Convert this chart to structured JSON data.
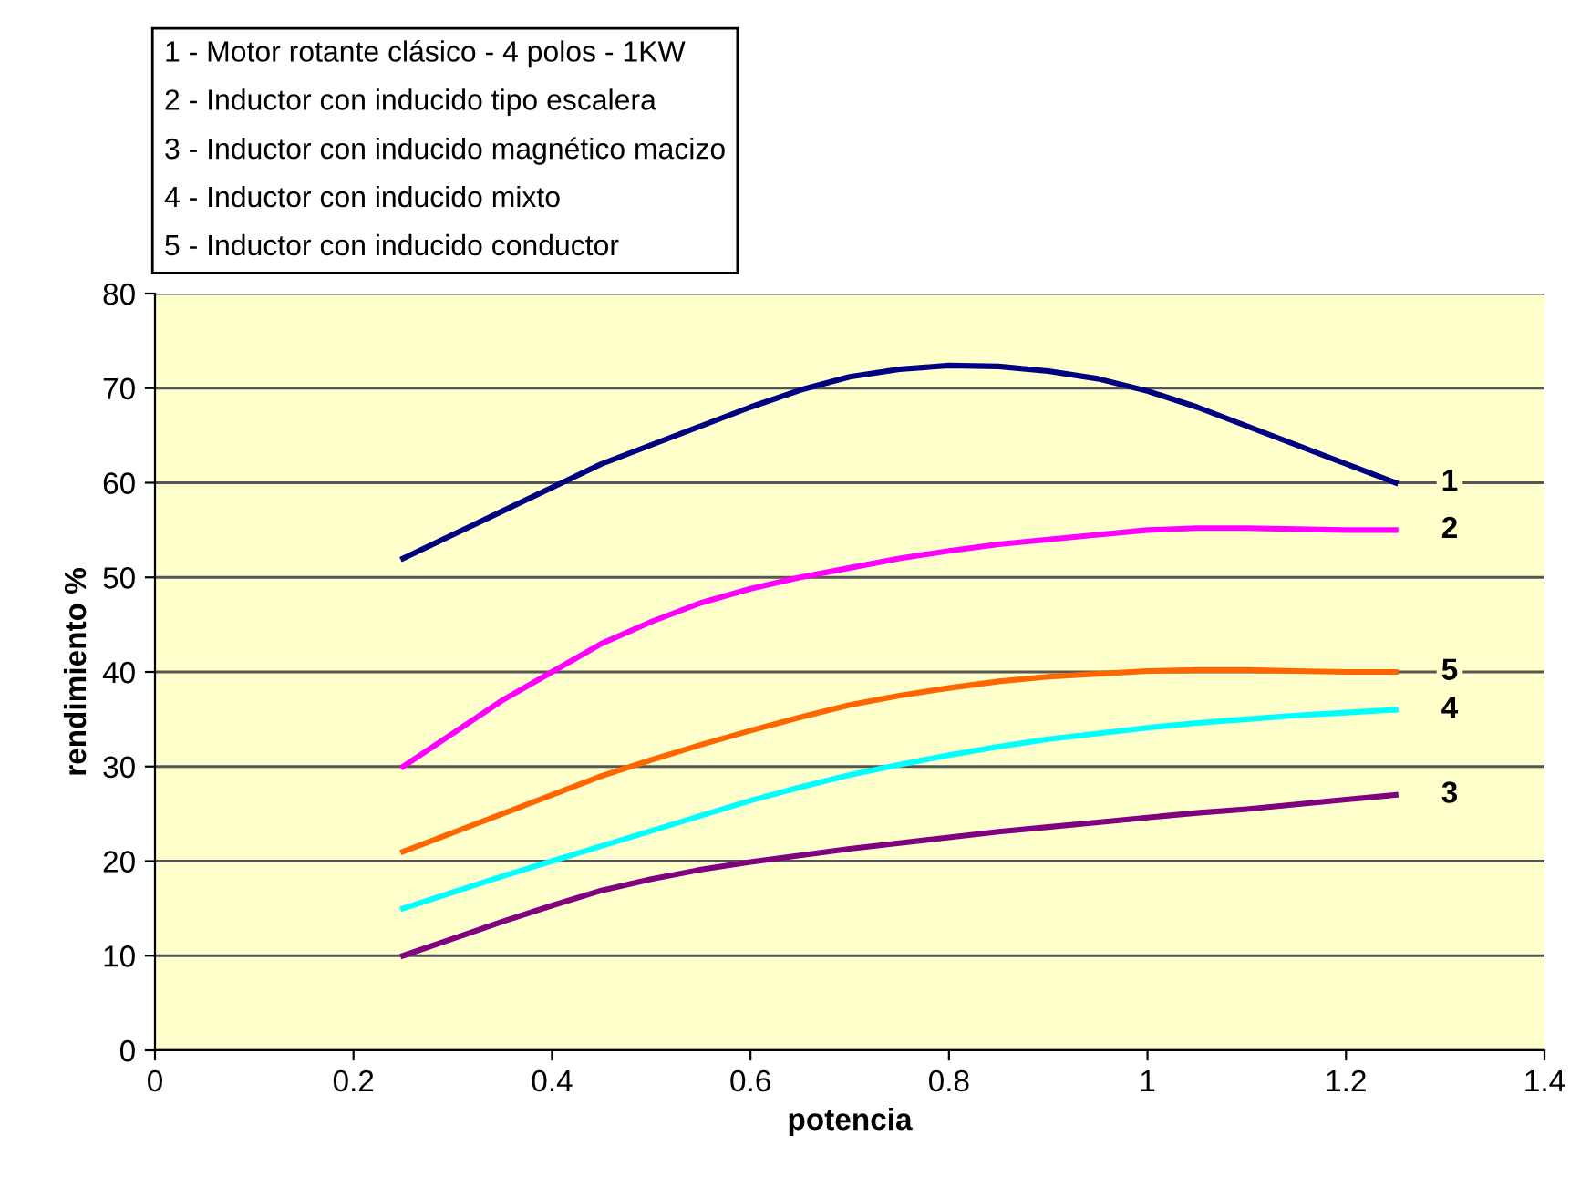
{
  "chart_data": {
    "type": "line",
    "xlabel": "potencia",
    "ylabel": "rendimiento %",
    "x": [
      0.25,
      0.3,
      0.35,
      0.4,
      0.45,
      0.5,
      0.55,
      0.6,
      0.65,
      0.7,
      0.75,
      0.8,
      0.85,
      0.9,
      0.95,
      1.0,
      1.05,
      1.1,
      1.15,
      1.2,
      1.25
    ],
    "series": [
      {
        "name": "1",
        "color": "#000080",
        "values": [
          52,
          54.5,
          57,
          59.5,
          62,
          64,
          66,
          68,
          69.8,
          71.2,
          72,
          72.4,
          72.3,
          71.8,
          71,
          69.7,
          68,
          66,
          64,
          62,
          60
        ]
      },
      {
        "name": "2",
        "color": "#ff00ff",
        "values": [
          30,
          33.5,
          37,
          40,
          43,
          45.3,
          47.3,
          48.8,
          50,
          51,
          52,
          52.8,
          53.5,
          54,
          54.5,
          55,
          55.2,
          55.2,
          55.1,
          55,
          55
        ]
      },
      {
        "name": "3",
        "color": "#800080",
        "values": [
          10,
          11.8,
          13.6,
          15.3,
          16.9,
          18.1,
          19.1,
          19.9,
          20.6,
          21.3,
          21.9,
          22.5,
          23.1,
          23.6,
          24.1,
          24.6,
          25.1,
          25.5,
          26,
          26.5,
          27
        ]
      },
      {
        "name": "4",
        "color": "#00ffff",
        "values": [
          15,
          16.7,
          18.4,
          20,
          21.6,
          23.2,
          24.8,
          26.4,
          27.8,
          29.1,
          30.2,
          31.2,
          32.1,
          32.9,
          33.5,
          34.1,
          34.6,
          35,
          35.4,
          35.7,
          36
        ]
      },
      {
        "name": "5",
        "color": "#ff6600",
        "values": [
          21,
          23,
          25,
          27,
          29,
          30.7,
          32.3,
          33.8,
          35.2,
          36.5,
          37.5,
          38.3,
          39,
          39.5,
          39.8,
          40.1,
          40.2,
          40.2,
          40.1,
          40,
          40
        ]
      }
    ],
    "annotations": [
      "1 - Motor rotante clásico - 4 polos - 1KW",
      "2 - Inductor con inducido tipo escalera",
      "3 - Inductor con inducido magnético macizo",
      "4 - Inductor con inducido mixto",
      "5 - Inductor con inducido conductor"
    ],
    "xlim": [
      0,
      1.4
    ],
    "xticks": [
      0,
      0.2,
      0.4,
      0.6,
      0.8,
      1,
      1.2,
      1.4
    ],
    "ylim": [
      0,
      80
    ],
    "yticks": [
      0,
      10,
      20,
      30,
      40,
      50,
      60,
      70,
      80
    ],
    "grid": "y",
    "legend": false,
    "marker": "none",
    "line_style": "solid"
  }
}
